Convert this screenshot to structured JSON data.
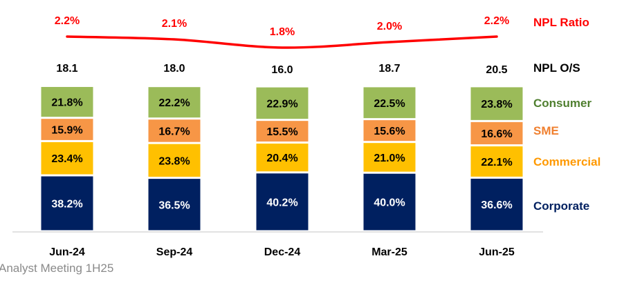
{
  "chart_data": {
    "type": "bar",
    "stacked": "percent",
    "categories": [
      "Jun-24",
      "Sep-24",
      "Dec-24",
      "Mar-25",
      "Jun-25"
    ],
    "series": [
      {
        "name": "Corporate",
        "color": "#002060",
        "label_color": "#ffffff",
        "values": [
          38.2,
          36.5,
          40.2,
          40.0,
          36.6
        ]
      },
      {
        "name": "Commercial",
        "color": "#ffc000",
        "label_color": "#000000",
        "legend_color": "#ff9900",
        "values": [
          23.4,
          23.8,
          20.4,
          21.0,
          22.1
        ]
      },
      {
        "name": "SME",
        "color": "#f79646",
        "label_color": "#000000",
        "legend_color": "#f08030",
        "values": [
          15.9,
          16.7,
          15.5,
          15.6,
          16.6
        ]
      },
      {
        "name": "Consumer",
        "color": "#9bbb59",
        "label_color": "#000000",
        "legend_color": "#4f7f2f",
        "values": [
          21.8,
          22.2,
          22.9,
          22.5,
          23.8
        ]
      }
    ],
    "npl_os": {
      "name": "NPL O/S",
      "values": [
        "18.1",
        "18.0",
        "16.0",
        "18.7",
        "20.5"
      ]
    },
    "npl_ratio": {
      "name": "NPL Ratio",
      "type": "line",
      "color": "#ff0000",
      "values": [
        2.2,
        2.1,
        1.8,
        2.0,
        2.2
      ],
      "labels": [
        "2.2%",
        "2.1%",
        "1.8%",
        "2.0%",
        "2.2%"
      ]
    },
    "grid": false,
    "legend": "right"
  },
  "footer": "Analyst Meeting 1H25"
}
